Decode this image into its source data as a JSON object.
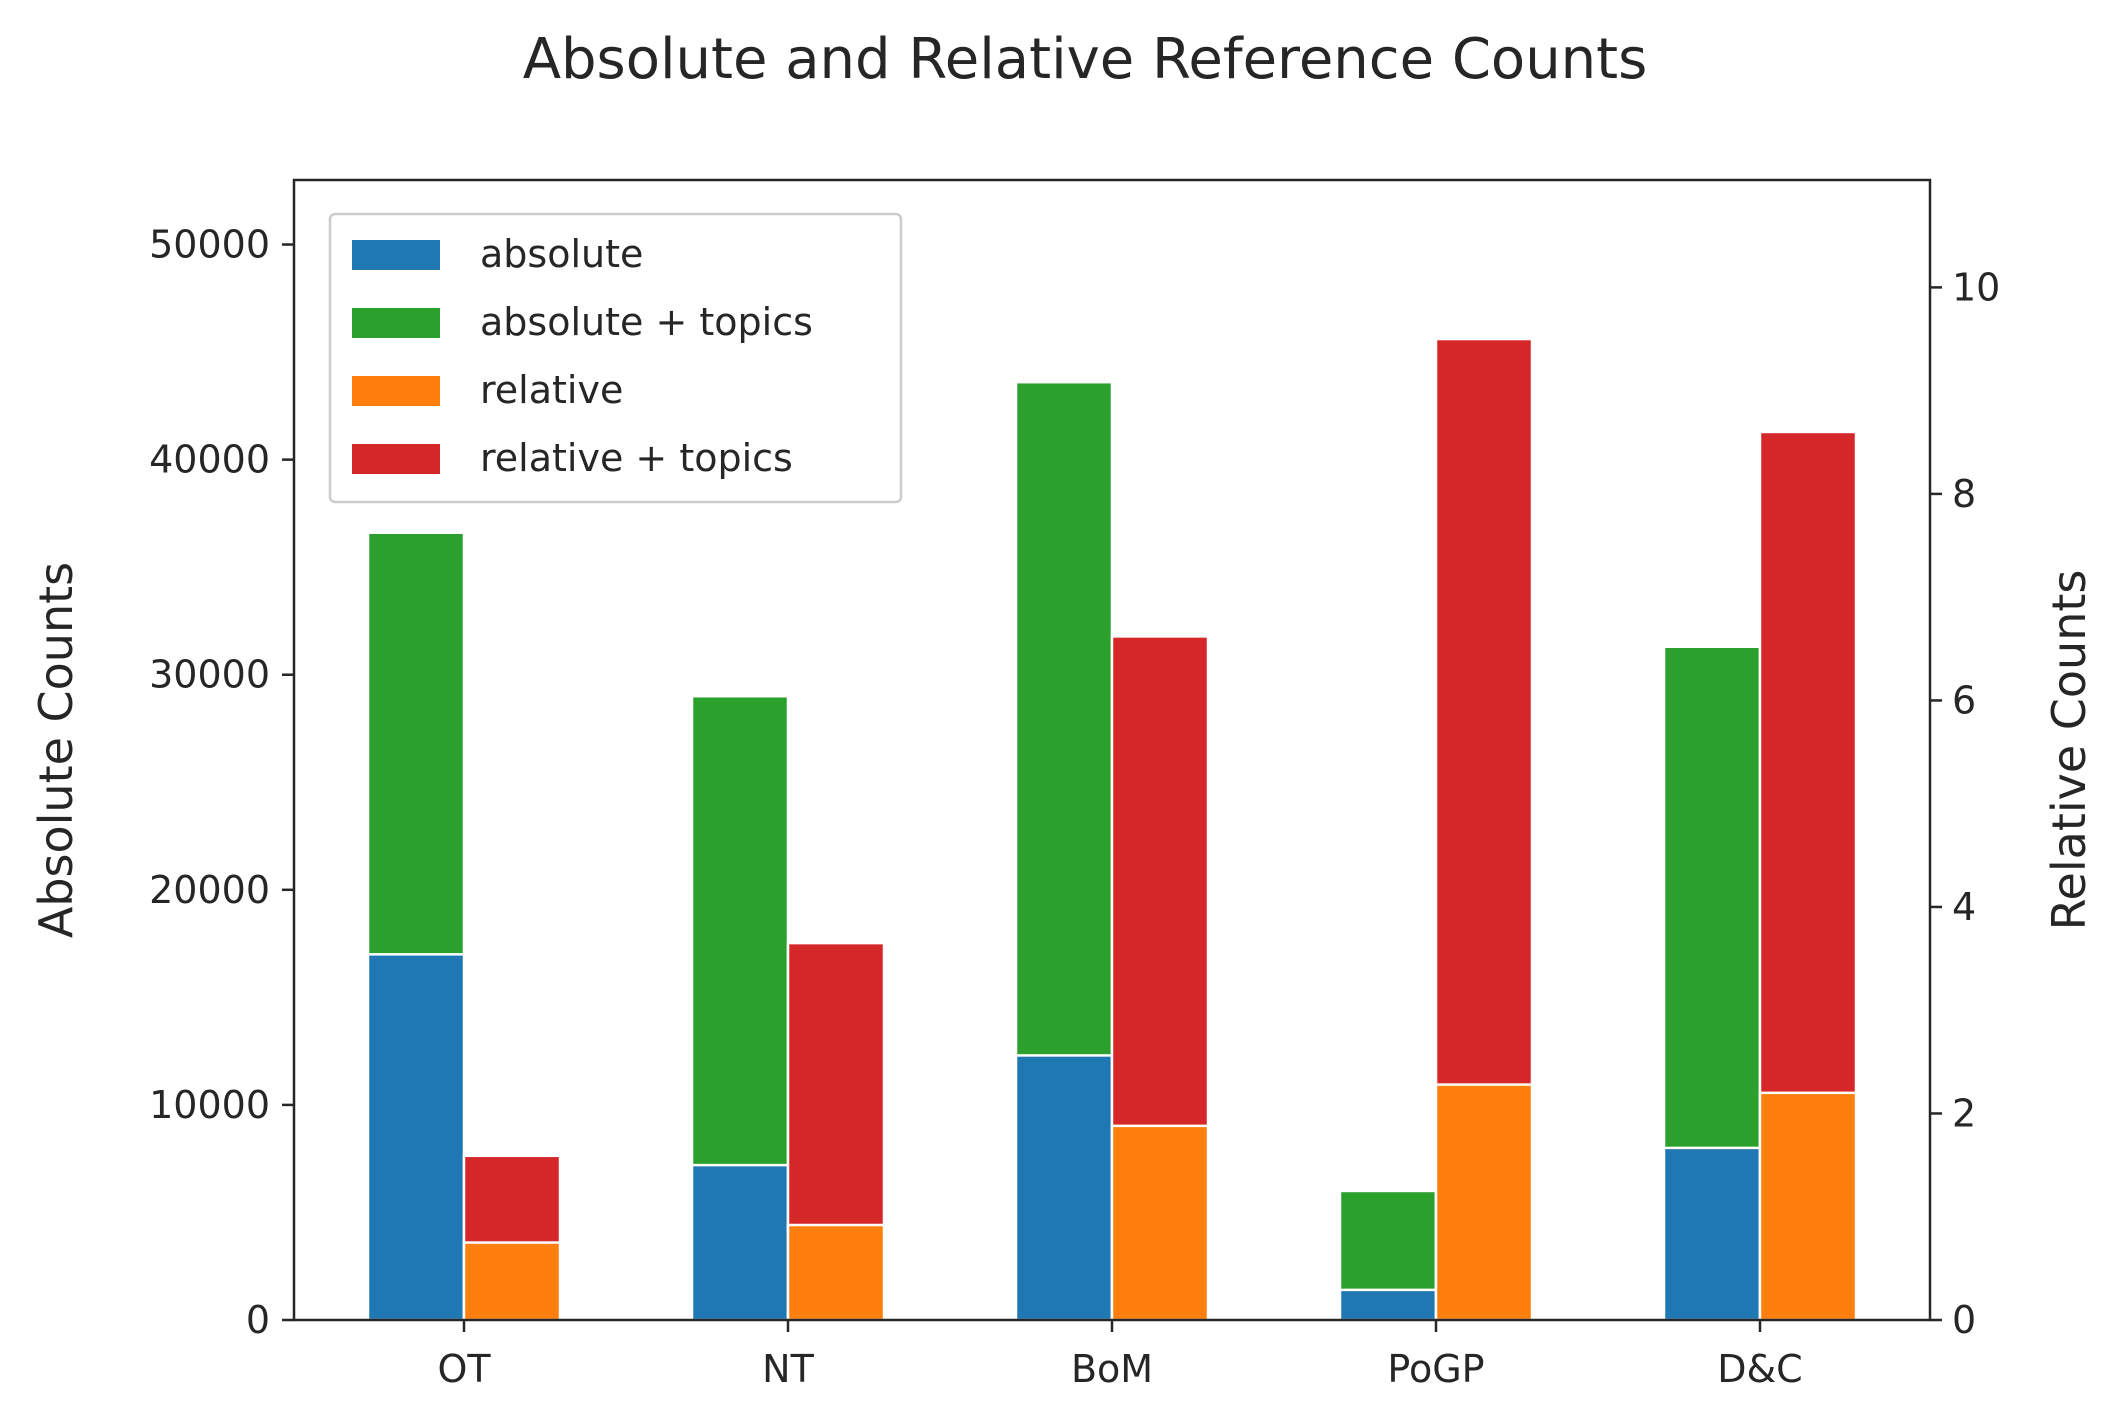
{
  "chart_data": {
    "type": "bar",
    "title": "Absolute and Relative Reference Counts",
    "categories": [
      "OT",
      "NT",
      "BoM",
      "PoGP",
      "D&C"
    ],
    "y_left": {
      "label": "Absolute Counts",
      "lim": [
        0,
        53000
      ],
      "ticks": [
        0,
        10000,
        20000,
        30000,
        40000,
        50000
      ]
    },
    "y_right": {
      "label": "Relative Counts",
      "lim": [
        0,
        11.04
      ],
      "ticks": [
        0,
        2,
        4,
        6,
        8,
        10
      ]
    },
    "series": [
      {
        "name": "absolute",
        "axis": "left",
        "group": "left",
        "color": "#1f77b4",
        "values": [
          17000,
          7200,
          12300,
          1400,
          8000
        ]
      },
      {
        "name": "absolute + topics",
        "axis": "left",
        "group": "left",
        "color": "#2ca02c",
        "values": [
          36600,
          29000,
          43600,
          6000,
          31300
        ]
      },
      {
        "name": "relative",
        "axis": "right",
        "group": "right",
        "color": "#ff7f0e",
        "values": [
          0.75,
          0.92,
          1.88,
          2.28,
          2.2
        ]
      },
      {
        "name": "relative + topics",
        "axis": "right",
        "group": "right",
        "color": "#d62728",
        "values": [
          1.59,
          3.65,
          6.62,
          9.5,
          8.6
        ]
      }
    ],
    "stacking": "totals",
    "legend": {
      "position": "top-left",
      "entries": [
        "absolute",
        "absolute + topics",
        "relative",
        "relative + topics"
      ]
    },
    "grid": false
  }
}
